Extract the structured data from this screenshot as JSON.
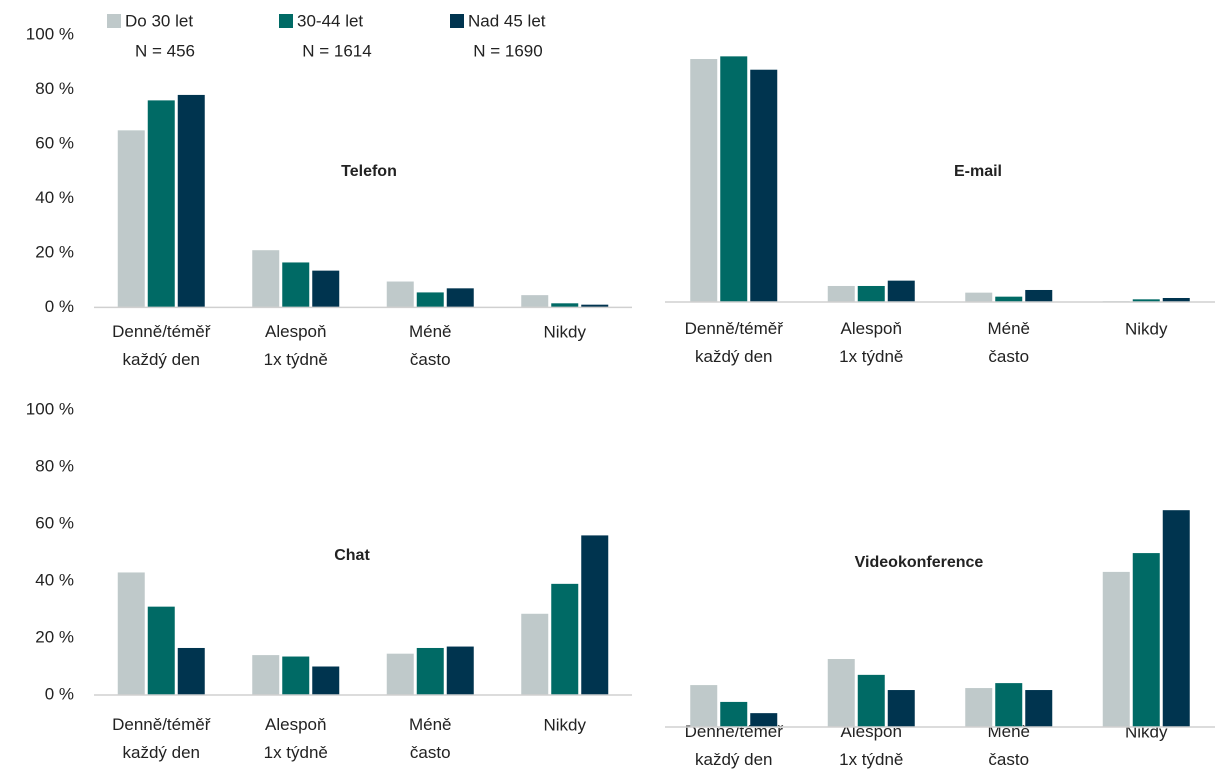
{
  "chart_data": [
    {
      "type": "bar",
      "title": "Telefon",
      "categories": [
        "Denně/téměř\nkaždý den",
        "Alespoň\n1x týdně",
        "Méně\nčasto",
        "Nikdy"
      ],
      "series": [
        {
          "name": "Do 30 let",
          "n_label": "N = 456",
          "color": "#bfc9ca",
          "values": [
            65,
            21,
            9.5,
            4.5
          ]
        },
        {
          "name": "30-44 let",
          "n_label": "N = 1614",
          "color": "#006a65",
          "values": [
            76,
            16.5,
            5.5,
            1.5
          ]
        },
        {
          "name": "Nad 45 let",
          "n_label": "N = 1690",
          "color": "#00344f",
          "values": [
            78,
            13.5,
            7,
            1
          ]
        }
      ],
      "ylim": [
        0,
        100
      ],
      "yticks": [
        {
          "value": 0,
          "label": "0 %"
        },
        {
          "value": 20,
          "label": "20 %"
        },
        {
          "value": 40,
          "label": "40 %"
        },
        {
          "value": 60,
          "label": "60 %"
        },
        {
          "value": 80,
          "label": "80 %"
        },
        {
          "value": 100,
          "label": "100 %"
        }
      ],
      "legend": "top"
    },
    {
      "type": "bar",
      "title": "E-mail",
      "categories": [
        "Denně/téměř\nkaždý den",
        "Alespoň\n1x týdně",
        "Méně\nčasto",
        "Nikdy"
      ],
      "series": [
        {
          "name": "Do 30 let",
          "color": "#bfc9ca",
          "values": [
            91,
            6,
            3.5,
            0.3
          ]
        },
        {
          "name": "30-44 let",
          "color": "#006a65",
          "values": [
            92,
            6,
            2,
            1
          ]
        },
        {
          "name": "Nad 45 let",
          "color": "#00344f",
          "values": [
            87,
            8,
            4.5,
            1.5
          ]
        }
      ],
      "ylim": [
        0,
        100
      ]
    },
    {
      "type": "bar",
      "title": "Chat",
      "categories": [
        "Denně/téměř\nkaždý den",
        "Alespoň\n1x týdně",
        "Méně\nčasto",
        "Nikdy"
      ],
      "series": [
        {
          "name": "Do 30 let",
          "color": "#bfc9ca",
          "values": [
            43,
            14,
            14.5,
            28.5
          ]
        },
        {
          "name": "30-44 let",
          "color": "#006a65",
          "values": [
            31,
            13.5,
            16.5,
            39
          ]
        },
        {
          "name": "Nad 45 let",
          "color": "#00344f",
          "values": [
            16.5,
            10,
            17,
            56
          ]
        }
      ],
      "ylim": [
        0,
        100
      ],
      "yticks": [
        {
          "value": 0,
          "label": "0 %"
        },
        {
          "value": 20,
          "label": "20 %"
        },
        {
          "value": 40,
          "label": "40 %"
        },
        {
          "value": 60,
          "label": "60 %"
        },
        {
          "value": 80,
          "label": "80 %"
        },
        {
          "value": 100,
          "label": "100 %"
        }
      ]
    },
    {
      "type": "bar",
      "title": "Videokonference",
      "categories": [
        "Denně/téměř\nkaždý den",
        "Alespoň\n1x týdně",
        "Méně\nčasto",
        "Nikdy"
      ],
      "series": [
        {
          "name": "Do 30 let",
          "color": "#bfc9ca",
          "values": [
            12.7,
            20.6,
            11.8,
            47
          ]
        },
        {
          "name": "30-44 let",
          "color": "#006a65",
          "values": [
            7.6,
            15.8,
            13.3,
            52.7
          ]
        },
        {
          "name": "Nad 45 let",
          "color": "#00344f",
          "values": [
            4.2,
            11.2,
            11.2,
            65.7
          ]
        }
      ],
      "ylim": [
        0,
        100
      ]
    }
  ]
}
